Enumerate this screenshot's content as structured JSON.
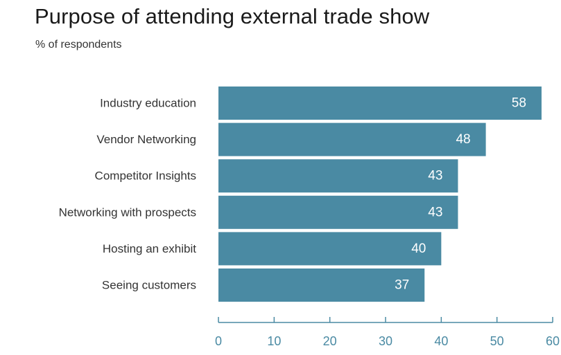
{
  "title": "Purpose of attending external trade show",
  "subtitle": "% of respondents",
  "colors": {
    "bar": "#4a8aa3",
    "axis": "#4a8aa3",
    "tick_text": "#4a8aa3",
    "category_text": "#333333",
    "value_text": "#ffffff"
  },
  "chart_data": {
    "type": "bar",
    "orientation": "horizontal",
    "title": "Purpose of attending external trade show",
    "subtitle": "% of respondents",
    "categories": [
      "Industry education",
      "Vendor Networking",
      "Competitor Insights",
      "Networking with prospects",
      "Hosting an exhibit",
      "Seeing customers"
    ],
    "values": [
      58,
      48,
      43,
      43,
      40,
      37
    ],
    "xlim": [
      0,
      60
    ],
    "xticks": [
      0,
      10,
      20,
      30,
      40,
      50,
      60
    ],
    "xlabel": "",
    "ylabel": "",
    "grid": false,
    "legend": "none",
    "data_labels": true
  }
}
